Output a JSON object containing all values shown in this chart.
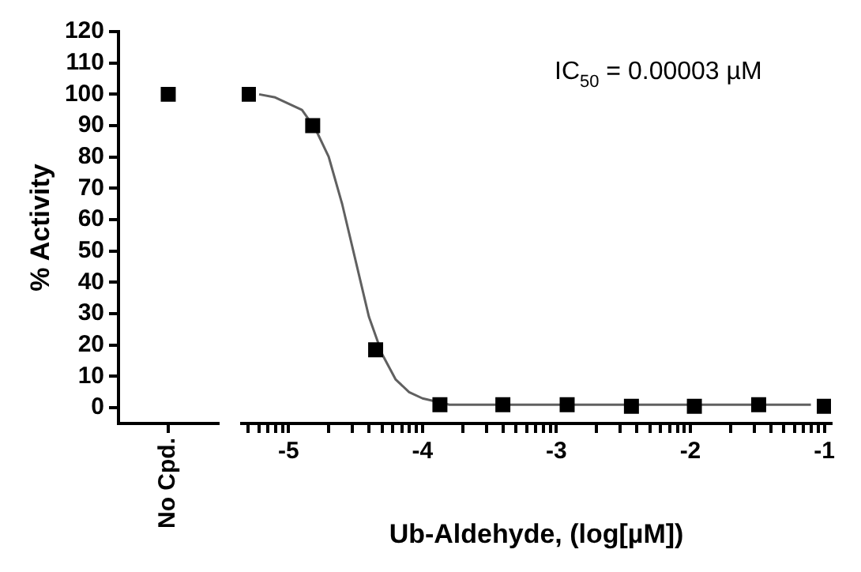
{
  "chart_data": [
    {
      "type": "scatter",
      "ylabel": "% Activity",
      "categories": [
        "No Cpd."
      ],
      "marker": "square",
      "series": [
        {
          "color": "#000000",
          "values": [
            100
          ]
        }
      ],
      "ylim": [
        -5,
        120
      ],
      "yticks": [
        0,
        10,
        20,
        30,
        40,
        50,
        60,
        70,
        80,
        90,
        100,
        110,
        120
      ]
    },
    {
      "type": "scatter",
      "xlabel": "Ub-Aldehyde, (log[µM])",
      "tick_labels": "x",
      "marker": "square",
      "annotations": [
        "IC$_{50}$ = 0.00003 µM"
      ],
      "series": [
        {
          "type": "line",
          "color": "#606060",
          "marker": "none",
          "x": [
            -5.22,
            -5.1,
            -4.9,
            -4.8,
            -4.7,
            -4.6,
            -4.5,
            -4.4,
            -4.3,
            -4.2,
            -4.1,
            -4.0,
            -3.8,
            -3.5,
            -1.1
          ],
          "values": [
            100,
            99,
            95,
            89,
            80,
            65,
            47,
            29,
            17,
            9,
            5,
            3,
            1,
            1,
            1
          ]
        },
        {
          "color": "#000000",
          "x": [
            -5.3,
            -4.82,
            -4.35,
            -3.87,
            -3.4,
            -2.92,
            -2.44,
            -1.97,
            -1.49,
            -1.0
          ],
          "values": [
            100,
            90,
            18.5,
            1,
            1,
            1,
            0.5,
            0.5,
            1,
            0.5
          ]
        }
      ],
      "xlim": [
        -5.35,
        -0.95
      ],
      "ylim": [
        -5,
        120
      ],
      "yticks": [
        0,
        10,
        20,
        30,
        40,
        50,
        60,
        70,
        80,
        90,
        100,
        110,
        120
      ],
      "xticks": [
        {
          "value": -5.301,
          "label": null
        },
        {
          "value": -5.222,
          "label": null
        },
        {
          "value": -5.155,
          "label": null
        },
        {
          "value": -5.097,
          "label": null
        },
        {
          "value": -5.046,
          "label": null
        },
        -5,
        {
          "value": -4.699,
          "label": null
        },
        {
          "value": -4.523,
          "label": null
        },
        {
          "value": -4.398,
          "label": null
        },
        {
          "value": -4.301,
          "label": null
        },
        {
          "value": -4.222,
          "label": null
        },
        {
          "value": -4.155,
          "label": null
        },
        {
          "value": -4.097,
          "label": null
        },
        {
          "value": -4.046,
          "label": null
        },
        -4,
        {
          "value": -3.699,
          "label": null
        },
        {
          "value": -3.523,
          "label": null
        },
        {
          "value": -3.398,
          "label": null
        },
        {
          "value": -3.301,
          "label": null
        },
        {
          "value": -3.222,
          "label": null
        },
        {
          "value": -3.155,
          "label": null
        },
        {
          "value": -3.097,
          "label": null
        },
        {
          "value": -3.046,
          "label": null
        },
        -3,
        {
          "value": -2.699,
          "label": null
        },
        {
          "value": -2.523,
          "label": null
        },
        {
          "value": -2.398,
          "label": null
        },
        {
          "value": -2.301,
          "label": null
        },
        {
          "value": -2.222,
          "label": null
        },
        {
          "value": -2.155,
          "label": null
        },
        {
          "value": -2.097,
          "label": null
        },
        {
          "value": -2.046,
          "label": null
        },
        -2,
        {
          "value": -1.699,
          "label": null
        },
        {
          "value": -1.523,
          "label": null
        },
        {
          "value": -1.398,
          "label": null
        },
        {
          "value": -1.301,
          "label": null
        },
        {
          "value": -1.222,
          "label": null
        },
        {
          "value": -1.155,
          "label": null
        },
        {
          "value": -1.097,
          "label": null
        },
        {
          "value": -1.046,
          "label": null
        },
        -1
      ]
    }
  ]
}
